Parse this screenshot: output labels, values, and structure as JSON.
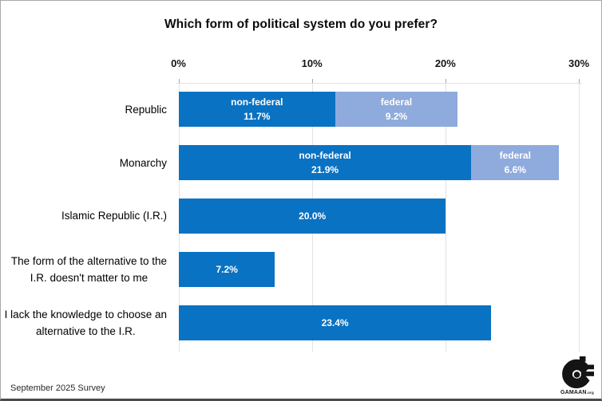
{
  "title": "Which form of political system do you prefer?",
  "footer": {
    "note": "September 2025 Survey",
    "logo_text": "GAMAAN",
    "logo_suffix": ".org"
  },
  "chart_data": {
    "type": "bar",
    "orientation": "horizontal",
    "stacked": true,
    "title": "Which form of political system do you prefer?",
    "xlabel": "",
    "ylabel": "",
    "x_axis": {
      "min": 0,
      "max": 30,
      "ticks": [
        "0%",
        "10%",
        "20%",
        "30%"
      ],
      "position": "top"
    },
    "grid": true,
    "colors": {
      "dark": "#0a72c2",
      "light": "#8faadc"
    },
    "bars": [
      {
        "category_lines": [
          "Republic"
        ],
        "segments": [
          {
            "name": "non-federal",
            "value": 11.7,
            "display": "11.7%",
            "color": "dark"
          },
          {
            "name": "federal",
            "value": 9.2,
            "display": "9.2%",
            "color": "light"
          }
        ]
      },
      {
        "category_lines": [
          "Monarchy"
        ],
        "segments": [
          {
            "name": "non-federal",
            "value": 21.9,
            "display": "21.9%",
            "color": "dark"
          },
          {
            "name": "federal",
            "value": 6.6,
            "display": "6.6%",
            "color": "light"
          }
        ]
      },
      {
        "category_lines": [
          "Islamic Republic (I.R.)"
        ],
        "segments": [
          {
            "name": "",
            "value": 20.0,
            "display": "20.0%",
            "color": "dark"
          }
        ]
      },
      {
        "category_lines": [
          "The form of the alternative to the",
          "I.R. doesn't matter to me"
        ],
        "segments": [
          {
            "name": "",
            "value": 7.2,
            "display": "7.2%",
            "color": "dark"
          }
        ]
      },
      {
        "category_lines": [
          "I lack the knowledge to choose an",
          "alternative to the I.R."
        ],
        "segments": [
          {
            "name": "",
            "value": 23.4,
            "display": "23.4%",
            "color": "dark"
          }
        ]
      }
    ]
  }
}
